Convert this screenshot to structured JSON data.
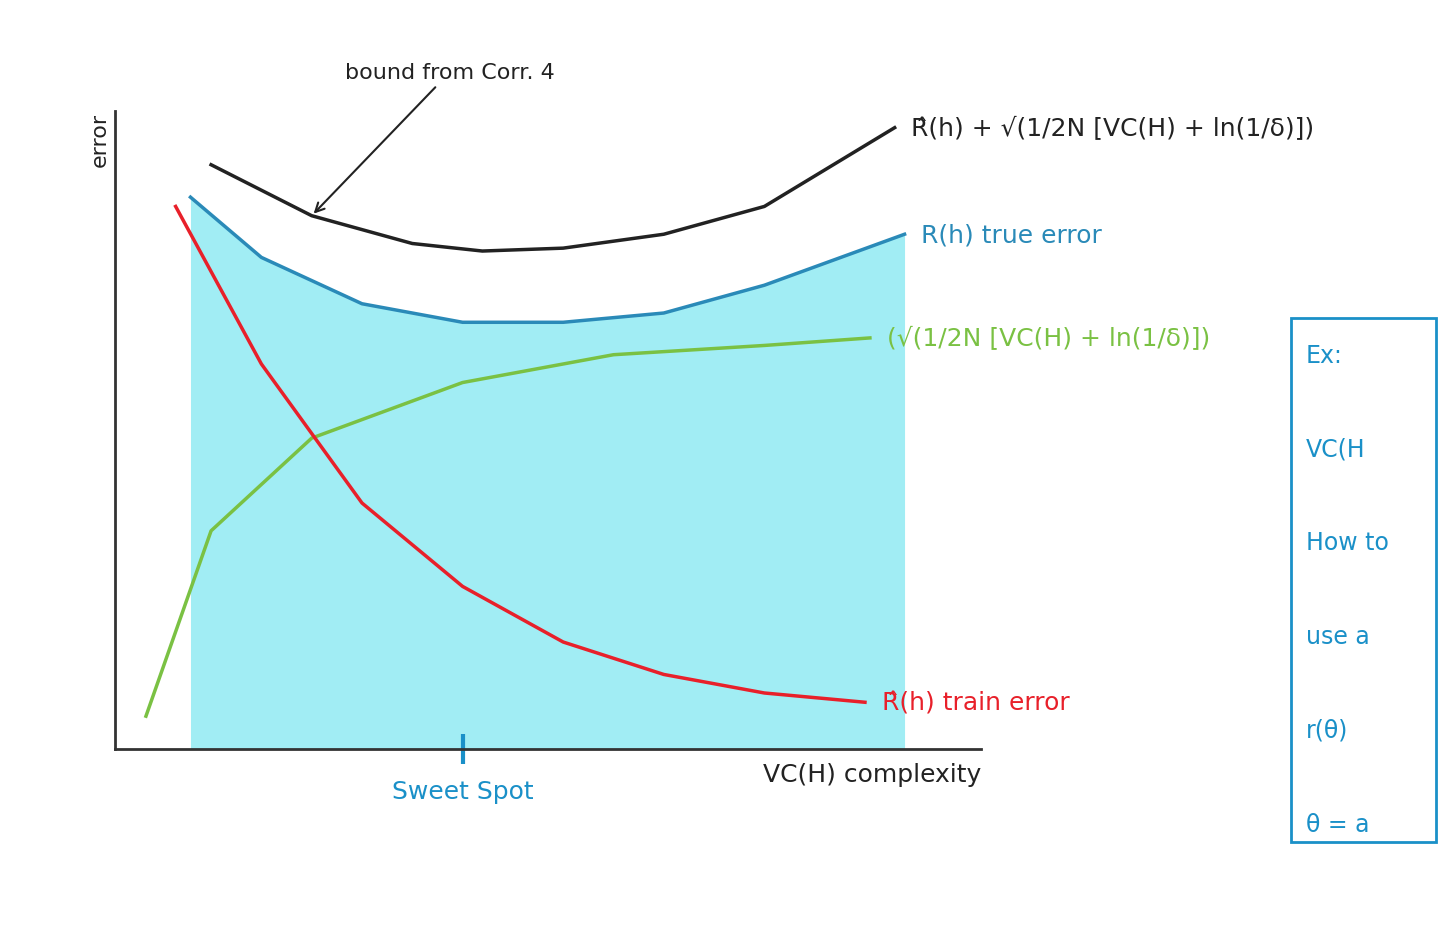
{
  "chart_data": {
    "type": "line",
    "x_label": "VC(H) complexity",
    "y_label": "error",
    "xlim": [
      0,
      10.5
    ],
    "ylim": [
      0,
      11
    ],
    "tick_labels": false,
    "grid": false,
    "series": [
      {
        "name": "R̂(h) + √(1/2N [VC(H) + ln(1/δ)])",
        "color": "#222222",
        "line_style": "solid",
        "x": [
          1.16,
          2.38,
          3.6,
          4.45,
          5.43,
          6.65,
          7.87,
          9.45
        ],
        "values": [
          10.08,
          9.2,
          8.72,
          8.59,
          8.64,
          8.88,
          9.36,
          10.72
        ]
      },
      {
        "name": "R(h) true error",
        "color": "#2a8ab8",
        "line_style": "solid",
        "x": [
          0.91,
          1.77,
          2.99,
          4.21,
          5.43,
          6.65,
          7.87,
          9.57
        ],
        "values": [
          9.52,
          8.48,
          7.68,
          7.36,
          7.36,
          7.52,
          8.0,
          8.88
        ]
      },
      {
        "name": "(√(1/2N [VC(H) + ln(1/δ)])",
        "color": "#7ac143",
        "line_style": "solid",
        "x": [
          0.37,
          1.16,
          2.38,
          4.21,
          6.04,
          7.87,
          9.15
        ],
        "values": [
          0.56,
          3.76,
          5.36,
          6.32,
          6.8,
          6.96,
          7.09
        ]
      },
      {
        "name": "R̂(h) train error",
        "color": "#e8202a",
        "line_style": "solid",
        "x": [
          0.73,
          1.77,
          2.99,
          4.21,
          5.43,
          6.65,
          7.87,
          9.09
        ],
        "values": [
          9.36,
          6.64,
          4.24,
          2.8,
          1.84,
          1.28,
          0.96,
          0.8
        ]
      }
    ],
    "annotations": [
      "bound from Corr. 4"
    ],
    "sweet_spot": {
      "label": "Sweet Spot",
      "x": 4.21,
      "color": "#1a90c8"
    },
    "side_box": [
      "Ex:",
      "VC(H",
      "How to",
      "use a",
      "r(θ)",
      "θ = a"
    ]
  }
}
